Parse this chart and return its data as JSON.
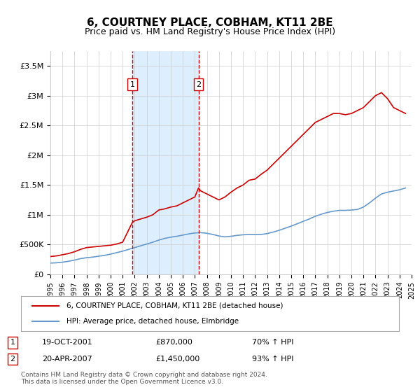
{
  "title": "6, COURTNEY PLACE, COBHAM, KT11 2BE",
  "subtitle": "Price paid vs. HM Land Registry's House Price Index (HPI)",
  "legend_line1": "6, COURTNEY PLACE, COBHAM, KT11 2BE (detached house)",
  "legend_line2": "HPI: Average price, detached house, Elmbridge",
  "annotation1_label": "1",
  "annotation1_date": "19-OCT-2001",
  "annotation1_price": "£870,000",
  "annotation1_hpi": "70% ↑ HPI",
  "annotation2_label": "2",
  "annotation2_date": "20-APR-2007",
  "annotation2_price": "£1,450,000",
  "annotation2_hpi": "93% ↑ HPI",
  "footer": "Contains HM Land Registry data © Crown copyright and database right 2024.\nThis data is licensed under the Open Government Licence v3.0.",
  "red_color": "#cc0000",
  "blue_color": "#6699cc",
  "vline_color": "#cc0000",
  "shade_color": "#ddeeff",
  "grid_color": "#cccccc",
  "background_color": "#ffffff",
  "x_start_year": 1995,
  "x_end_year": 2025,
  "ylim": [
    0,
    3750000
  ],
  "yticks": [
    0,
    500000,
    1000000,
    1500000,
    2000000,
    2500000,
    3000000,
    3500000
  ],
  "ytick_labels": [
    "£0",
    "£500K",
    "£1M",
    "£1.5M",
    "£2M",
    "£2.5M",
    "£3M",
    "£3.5M"
  ],
  "vline1_year": 2001.8,
  "vline2_year": 2007.3,
  "red_x": [
    1995.0,
    1995.5,
    1996.0,
    1996.5,
    1997.0,
    1997.5,
    1998.0,
    1998.5,
    1999.0,
    1999.5,
    2000.0,
    2000.5,
    2001.0,
    2001.8,
    2002.0,
    2002.5,
    2003.0,
    2003.5,
    2004.0,
    2004.5,
    2005.0,
    2005.5,
    2006.0,
    2006.5,
    2007.0,
    2007.3,
    2007.5,
    2008.0,
    2008.5,
    2009.0,
    2009.5,
    2010.0,
    2010.5,
    2011.0,
    2011.5,
    2012.0,
    2012.5,
    2013.0,
    2013.5,
    2014.0,
    2014.5,
    2015.0,
    2015.5,
    2016.0,
    2016.5,
    2017.0,
    2017.5,
    2018.0,
    2018.5,
    2019.0,
    2019.5,
    2020.0,
    2020.5,
    2021.0,
    2021.5,
    2022.0,
    2022.5,
    2023.0,
    2023.5,
    2024.0,
    2024.5
  ],
  "red_y": [
    300000,
    310000,
    330000,
    350000,
    380000,
    420000,
    450000,
    460000,
    470000,
    480000,
    490000,
    510000,
    540000,
    870000,
    900000,
    930000,
    960000,
    1000000,
    1080000,
    1100000,
    1130000,
    1150000,
    1200000,
    1250000,
    1300000,
    1450000,
    1400000,
    1350000,
    1300000,
    1250000,
    1300000,
    1380000,
    1450000,
    1500000,
    1580000,
    1600000,
    1680000,
    1750000,
    1850000,
    1950000,
    2050000,
    2150000,
    2250000,
    2350000,
    2450000,
    2550000,
    2600000,
    2650000,
    2700000,
    2700000,
    2680000,
    2700000,
    2750000,
    2800000,
    2900000,
    3000000,
    3050000,
    2950000,
    2800000,
    2750000,
    2700000
  ],
  "blue_x": [
    1995.0,
    1995.5,
    1996.0,
    1996.5,
    1997.0,
    1997.5,
    1998.0,
    1998.5,
    1999.0,
    1999.5,
    2000.0,
    2000.5,
    2001.0,
    2001.5,
    2002.0,
    2002.5,
    2003.0,
    2003.5,
    2004.0,
    2004.5,
    2005.0,
    2005.5,
    2006.0,
    2006.5,
    2007.0,
    2007.5,
    2008.0,
    2008.5,
    2009.0,
    2009.5,
    2010.0,
    2010.5,
    2011.0,
    2011.5,
    2012.0,
    2012.5,
    2013.0,
    2013.5,
    2014.0,
    2014.5,
    2015.0,
    2015.5,
    2016.0,
    2016.5,
    2017.0,
    2017.5,
    2018.0,
    2018.5,
    2019.0,
    2019.5,
    2020.0,
    2020.5,
    2021.0,
    2021.5,
    2022.0,
    2022.5,
    2023.0,
    2023.5,
    2024.0,
    2024.5
  ],
  "blue_y": [
    190000,
    195000,
    205000,
    220000,
    240000,
    265000,
    280000,
    290000,
    305000,
    320000,
    340000,
    365000,
    390000,
    420000,
    450000,
    480000,
    510000,
    540000,
    575000,
    605000,
    625000,
    640000,
    660000,
    680000,
    695000,
    700000,
    690000,
    670000,
    645000,
    630000,
    640000,
    655000,
    665000,
    670000,
    668000,
    670000,
    685000,
    710000,
    740000,
    775000,
    810000,
    850000,
    890000,
    930000,
    975000,
    1010000,
    1040000,
    1060000,
    1075000,
    1075000,
    1080000,
    1090000,
    1130000,
    1200000,
    1280000,
    1350000,
    1380000,
    1400000,
    1420000,
    1450000
  ]
}
